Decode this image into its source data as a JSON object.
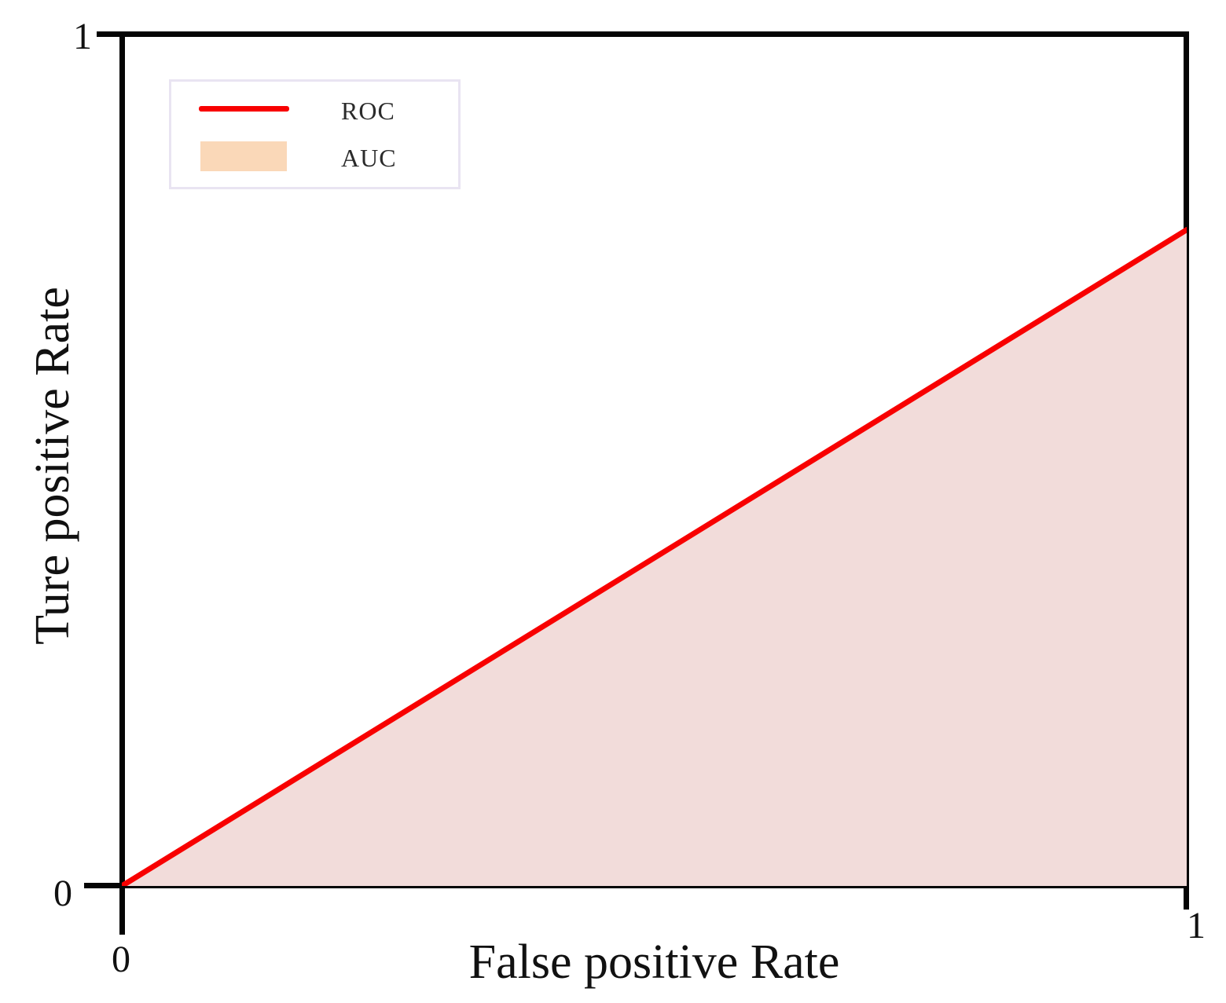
{
  "figure": {
    "x_axis": {
      "title": "False positive Rate",
      "tick_left": "0",
      "tick_right": "1"
    },
    "y_axis": {
      "title": "Ture positive Rate",
      "tick_bottom": "0",
      "tick_top": "1"
    },
    "legend": {
      "items": [
        {
          "label": "ROC",
          "swatch": "line"
        },
        {
          "label": "AUC",
          "swatch": "area"
        }
      ]
    }
  },
  "chart_data": {
    "type": "line",
    "title": "",
    "xlabel": "False positive Rate",
    "ylabel": "Ture positive Rate",
    "xlim": [
      0,
      1
    ],
    "ylim": [
      0,
      1
    ],
    "xticks": [
      0,
      1
    ],
    "yticks": [
      0,
      1
    ],
    "grid": false,
    "legend_position": "upper left",
    "series": [
      {
        "name": "ROC",
        "x": [
          0,
          1
        ],
        "y": [
          0,
          0.77
        ]
      }
    ],
    "area": {
      "name": "AUC",
      "under_series": "ROC",
      "baseline_y": 0
    },
    "colors": {
      "roc_line": "#f80000",
      "auc_area": "#f2dcda",
      "auc_legend_swatch": "#fad8b8",
      "axis": "#050505",
      "legend_border": "#e9e4f2",
      "text": "#111111"
    }
  }
}
